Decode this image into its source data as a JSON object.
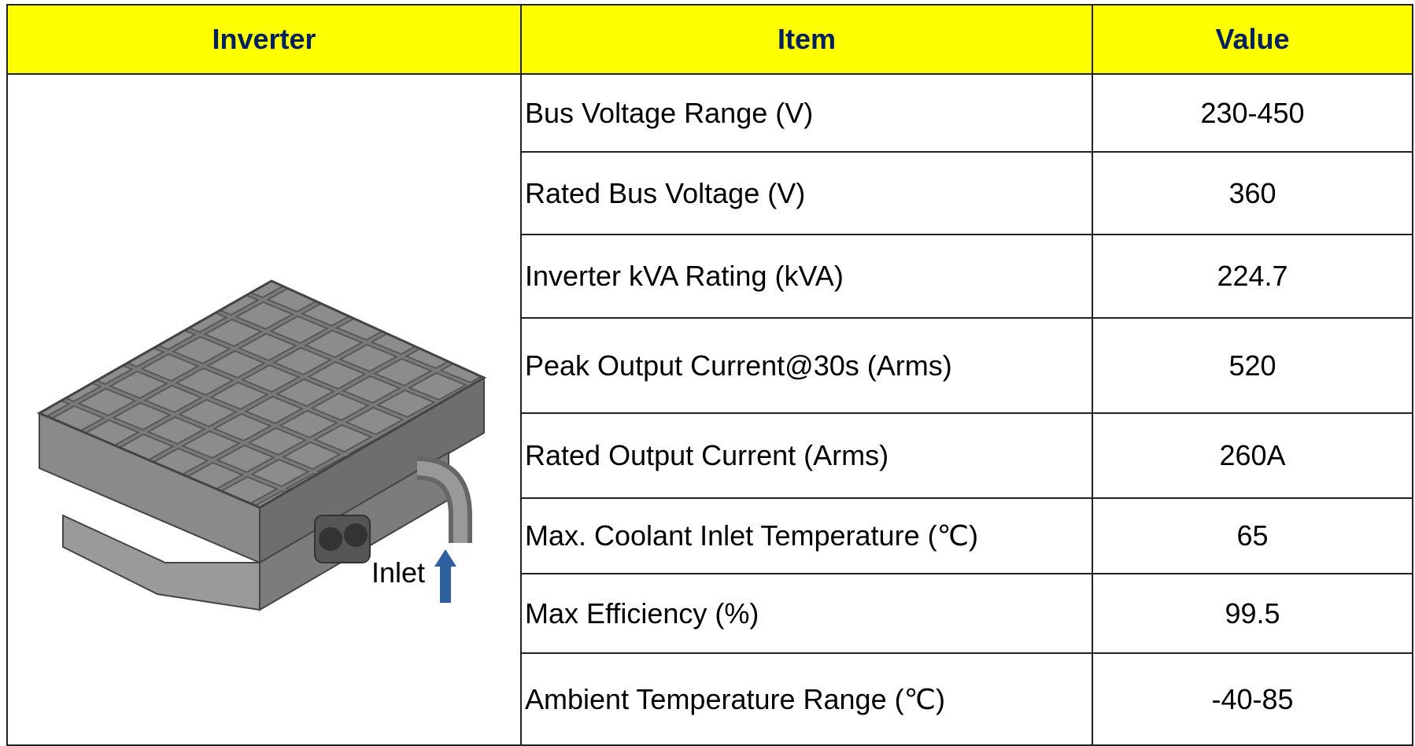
{
  "table": {
    "header": [
      "Inverter",
      "Item",
      "Value"
    ],
    "image_label": "Inlet",
    "rows": [
      [
        "Bus Voltage Range (V)",
        "230-450"
      ],
      [
        "Rated Bus Voltage (V)",
        "360"
      ],
      [
        "Inverter kVA Rating (kVA)",
        "224.7"
      ],
      [
        "Peak Output Current@30s (Arms)",
        "520"
      ],
      [
        "Rated Output Current (Arms)",
        "260A"
      ],
      [
        "Max. Coolant Inlet Temperature (℃)",
        "65"
      ],
      [
        "Max Efficiency (%)",
        "99.5"
      ],
      [
        "Ambient Temperature Range (℃)",
        "-40-85"
      ]
    ]
  }
}
